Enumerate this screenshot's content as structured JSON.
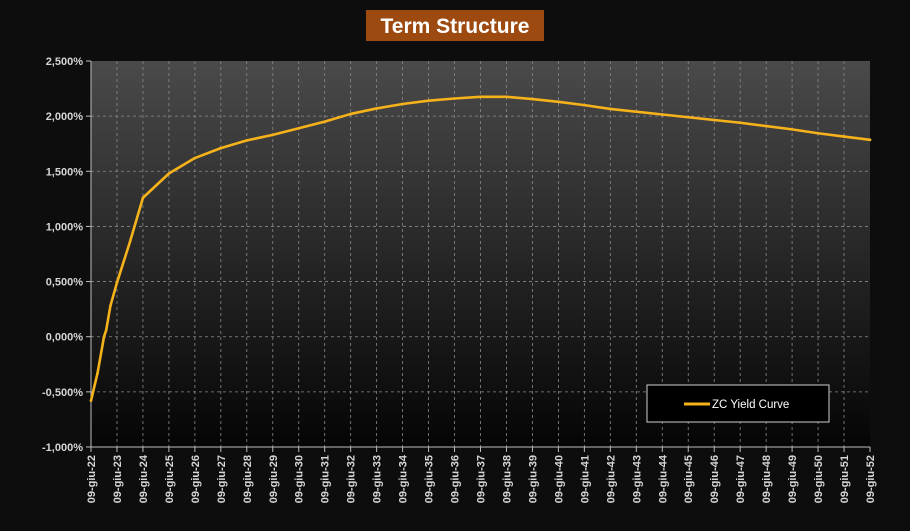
{
  "chart_data": {
    "type": "line",
    "title": "Term Structure",
    "xlabel": "",
    "ylabel": "",
    "x_ticks": [
      "09-giu-22",
      "09-giu-23",
      "09-giu-24",
      "09-giu-25",
      "09-giu-26",
      "09-giu-27",
      "09-giu-28",
      "09-giu-29",
      "09-giu-30",
      "09-giu-31",
      "09-giu-32",
      "09-giu-33",
      "09-giu-34",
      "09-giu-35",
      "09-giu-36",
      "09-giu-37",
      "09-giu-38",
      "09-giu-39",
      "09-giu-40",
      "09-giu-41",
      "09-giu-42",
      "09-giu-43",
      "09-giu-44",
      "09-giu-45",
      "09-giu-46",
      "09-giu-47",
      "09-giu-48",
      "09-giu-49",
      "09-giu-50",
      "09-giu-51",
      "09-giu-52"
    ],
    "y_ticks": [
      "2,500%",
      "2,000%",
      "1,500%",
      "1,000%",
      "0,500%",
      "0,000%",
      "-0,500%",
      "-1,000%"
    ],
    "ylim": [
      -1.0,
      2.5
    ],
    "xlim": [
      "2022-06-09",
      "2052-06-09"
    ],
    "grid": true,
    "legend": {
      "position": "bottom-right"
    },
    "series": [
      {
        "name": "ZC Yield Curve",
        "color": "#f5b21b",
        "points": [
          [
            "2022-06-09",
            -0.58
          ],
          [
            "2022-09-09",
            -0.33
          ],
          [
            "2022-12-09",
            0.0
          ],
          [
            "2023-01-09",
            0.06
          ],
          [
            "2023-03-09",
            0.28
          ],
          [
            "2023-06-09",
            0.49
          ],
          [
            "2023-12-09",
            0.86
          ],
          [
            "2024-06-09",
            1.26
          ],
          [
            "2025-06-09",
            1.48
          ],
          [
            "2026-06-09",
            1.62
          ],
          [
            "2027-06-09",
            1.71
          ],
          [
            "2028-06-09",
            1.78
          ],
          [
            "2029-06-09",
            1.83
          ],
          [
            "2030-06-09",
            1.89
          ],
          [
            "2031-06-09",
            1.95
          ],
          [
            "2032-06-09",
            2.02
          ],
          [
            "2033-06-09",
            2.07
          ],
          [
            "2034-06-09",
            2.11
          ],
          [
            "2035-06-09",
            2.14
          ],
          [
            "2036-06-09",
            2.16
          ],
          [
            "2037-06-09",
            2.175
          ],
          [
            "2038-06-09",
            2.175
          ],
          [
            "2039-06-09",
            2.155
          ],
          [
            "2040-06-09",
            2.13
          ],
          [
            "2041-06-09",
            2.1
          ],
          [
            "2042-06-09",
            2.065
          ],
          [
            "2043-06-09",
            2.04
          ],
          [
            "2044-06-09",
            2.015
          ],
          [
            "2045-06-09",
            1.99
          ],
          [
            "2046-06-09",
            1.965
          ],
          [
            "2047-06-09",
            1.94
          ],
          [
            "2048-06-09",
            1.91
          ],
          [
            "2049-06-09",
            1.88
          ],
          [
            "2050-06-09",
            1.845
          ],
          [
            "2051-06-09",
            1.815
          ],
          [
            "2052-06-09",
            1.785
          ]
        ]
      }
    ]
  },
  "colors": {
    "background": "#0d0d0d",
    "title_bg": "#9c4a10",
    "line": "#f5b21b",
    "grid": "#8a8a8a",
    "text": "#d6d6d6"
  }
}
